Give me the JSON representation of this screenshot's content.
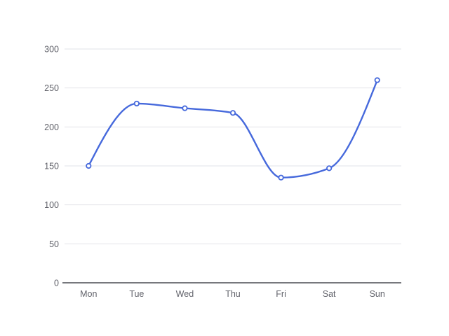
{
  "chart_data": {
    "type": "line",
    "smooth": true,
    "title": "",
    "xlabel": "",
    "ylabel": "",
    "categories": [
      "Mon",
      "Tue",
      "Wed",
      "Thu",
      "Fri",
      "Sat",
      "Sun"
    ],
    "values": [
      150,
      230,
      224,
      218,
      135,
      147,
      260
    ],
    "ylim": [
      0,
      300
    ],
    "y_tick_interval": 50,
    "y_tick_labels": [
      "0",
      "50",
      "100",
      "150",
      "200",
      "250",
      "300"
    ],
    "grid": true,
    "legend_position": "none",
    "point_style": "hollow-circle",
    "colors": {
      "line": "#4669DC",
      "point_fill": "#FFFFFF",
      "grid_line": "#E2E3E8",
      "axis_line": "#4A4B52",
      "tick_label": "#61626A",
      "background": "#FFFFFF"
    }
  }
}
